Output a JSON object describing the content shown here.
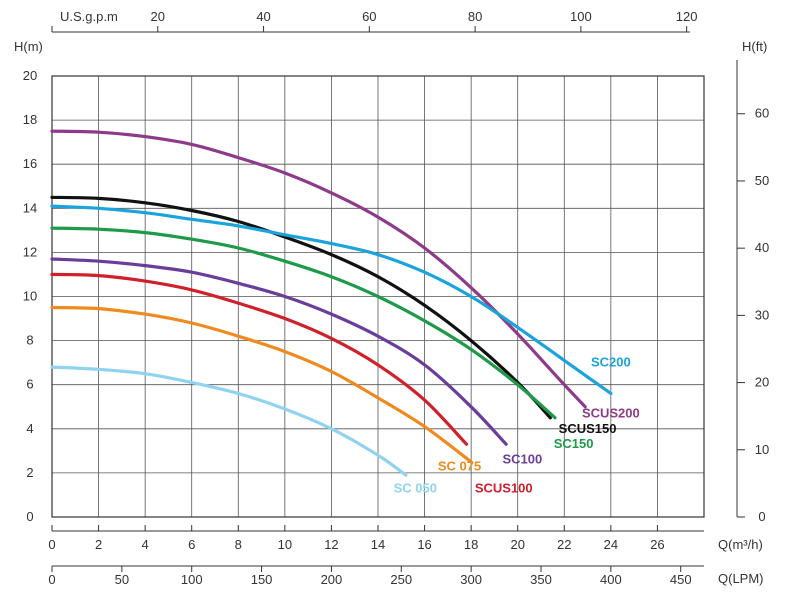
{
  "chart_data": {
    "type": "line",
    "title": "",
    "xlabel": "Q(m³/h)",
    "ylabel": "H(m)",
    "xlim": [
      0,
      28
    ],
    "ylim": [
      0,
      20
    ],
    "x_ticks": [
      0,
      2,
      4,
      6,
      8,
      10,
      12,
      14,
      16,
      18,
      20,
      22,
      24,
      26
    ],
    "y_ticks": [
      0,
      2,
      4,
      6,
      8,
      10,
      12,
      14,
      16,
      18,
      20
    ],
    "grid": true,
    "secondary_axes": {
      "top": {
        "label": "U.S.g.p.m",
        "ticks": [
          20,
          40,
          60,
          80,
          100,
          120
        ]
      },
      "bottom_lpm": {
        "label": "Q(LPM)",
        "ticks": [
          0,
          50,
          100,
          150,
          200,
          250,
          300,
          350,
          400,
          450
        ]
      },
      "right": {
        "label": "H(ft)",
        "ticks": [
          0,
          10,
          20,
          30,
          40,
          50,
          60
        ]
      }
    },
    "series": [
      {
        "name": "SCUS200",
        "color": "#8e3a8a",
        "x": [
          0,
          2,
          4,
          6,
          8,
          10,
          12,
          14,
          16,
          18,
          20,
          22,
          22.9
        ],
        "y": [
          17.5,
          17.45,
          17.25,
          16.9,
          16.3,
          15.6,
          14.7,
          13.6,
          12.2,
          10.4,
          8.3,
          6.0,
          5.0
        ]
      },
      {
        "name": "SCUS150",
        "color": "#111111",
        "x": [
          0,
          2,
          4,
          6,
          8,
          10,
          12,
          14,
          16,
          18,
          20,
          21.4
        ],
        "y": [
          14.5,
          14.45,
          14.25,
          13.9,
          13.4,
          12.7,
          11.9,
          10.9,
          9.6,
          8.0,
          6.1,
          4.5
        ]
      },
      {
        "name": "SC200",
        "color": "#1ba3dc",
        "x": [
          0,
          2,
          4,
          6,
          8,
          10,
          12,
          14,
          16,
          18,
          20,
          22,
          24
        ],
        "y": [
          14.1,
          14.0,
          13.8,
          13.5,
          13.2,
          12.8,
          12.4,
          11.9,
          11.1,
          10.0,
          8.6,
          7.1,
          5.6
        ]
      },
      {
        "name": "SC150",
        "color": "#1f9a4a",
        "x": [
          0,
          2,
          4,
          6,
          8,
          10,
          12,
          14,
          16,
          18,
          20,
          21.6
        ],
        "y": [
          13.1,
          13.05,
          12.9,
          12.6,
          12.2,
          11.6,
          10.9,
          10.0,
          8.9,
          7.6,
          6.0,
          4.5
        ]
      },
      {
        "name": "SC100",
        "color": "#6a3d9a",
        "x": [
          0,
          2,
          4,
          6,
          8,
          10,
          12,
          14,
          16,
          18,
          19.5
        ],
        "y": [
          11.7,
          11.6,
          11.4,
          11.1,
          10.6,
          10.0,
          9.2,
          8.2,
          6.9,
          5.0,
          3.3
        ]
      },
      {
        "name": "SCUS100",
        "color": "#d0202b",
        "x": [
          0,
          2,
          4,
          6,
          8,
          10,
          12,
          14,
          16,
          17.8
        ],
        "y": [
          11.0,
          10.95,
          10.7,
          10.3,
          9.7,
          9.0,
          8.1,
          6.9,
          5.3,
          3.3
        ]
      },
      {
        "name": "SC 075",
        "color": "#ef8a1e",
        "x": [
          0,
          2,
          4,
          6,
          8,
          10,
          12,
          14,
          16,
          18
        ],
        "y": [
          9.5,
          9.45,
          9.2,
          8.8,
          8.2,
          7.5,
          6.6,
          5.4,
          4.1,
          2.5
        ]
      },
      {
        "name": "SC 050",
        "color": "#8fd3ef",
        "x": [
          0,
          2,
          4,
          6,
          8,
          10,
          12,
          14,
          15.2
        ],
        "y": [
          6.8,
          6.7,
          6.5,
          6.1,
          5.6,
          4.9,
          4.0,
          2.8,
          1.9
        ]
      }
    ],
    "labels": [
      {
        "text": "SC200",
        "color": "#1ba3dc",
        "at": [
          24,
          7.0
        ]
      },
      {
        "text": "SCUS200",
        "color": "#8e3a8a",
        "at": [
          24,
          4.7
        ]
      },
      {
        "text": "SCUS150",
        "color": "#111111",
        "at": [
          23,
          4.0
        ]
      },
      {
        "text": "SC150",
        "color": "#1f9a4a",
        "at": [
          22.4,
          3.3
        ]
      },
      {
        "text": "SC100",
        "color": "#6a3d9a",
        "at": [
          20.2,
          2.6
        ]
      },
      {
        "text": "SC 075",
        "color": "#ef8a1e",
        "at": [
          17.5,
          2.3
        ]
      },
      {
        "text": "SCUS100",
        "color": "#d0202b",
        "at": [
          19.4,
          1.3
        ]
      },
      {
        "text": "SC 050",
        "color": "#8fd3ef",
        "at": [
          15.6,
          1.3
        ]
      }
    ]
  }
}
